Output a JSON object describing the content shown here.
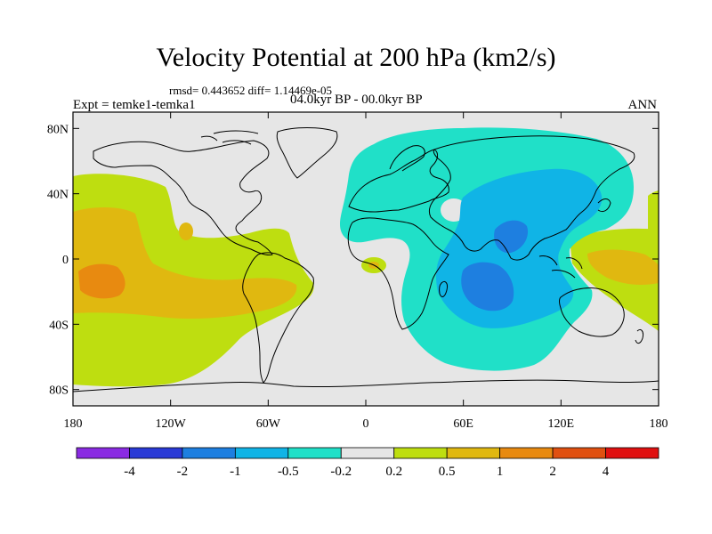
{
  "title": "Velocity Potential at 200 hPa (km2/s)",
  "stats": "rmsd= 0.443652  diff= 1.14469e-05",
  "experiment": "Expt = temke1-temka1",
  "period": "04.0kyr BP - 00.0kyr BP",
  "season": "ANN",
  "y_ticks": [
    {
      "label": "80N",
      "lat": 80
    },
    {
      "label": "40N",
      "lat": 40
    },
    {
      "label": "0",
      "lat": 0
    },
    {
      "label": "40S",
      "lat": -40
    },
    {
      "label": "80S",
      "lat": -80
    }
  ],
  "x_ticks": [
    {
      "label": "180",
      "lon": -180
    },
    {
      "label": "120W",
      "lon": -120
    },
    {
      "label": "60W",
      "lon": -60
    },
    {
      "label": "0",
      "lon": 0
    },
    {
      "label": "60E",
      "lon": 60
    },
    {
      "label": "120E",
      "lon": 120
    },
    {
      "label": "180",
      "lon": 180
    }
  ],
  "colorbar": {
    "colors": [
      "#8a2be2",
      "#2a3ad6",
      "#1e7fe0",
      "#10b4e6",
      "#20e0c8",
      "#e6e6e6",
      "#bede10",
      "#e0b810",
      "#e88a10",
      "#e05010",
      "#e01010"
    ],
    "labels": [
      "-4",
      "-2",
      "-1",
      "-0.5",
      "-0.2",
      "0.2",
      "0.5",
      "1",
      "2",
      "4"
    ]
  },
  "colors": {
    "background": "#e6e6e6",
    "coastline": "#000000"
  }
}
